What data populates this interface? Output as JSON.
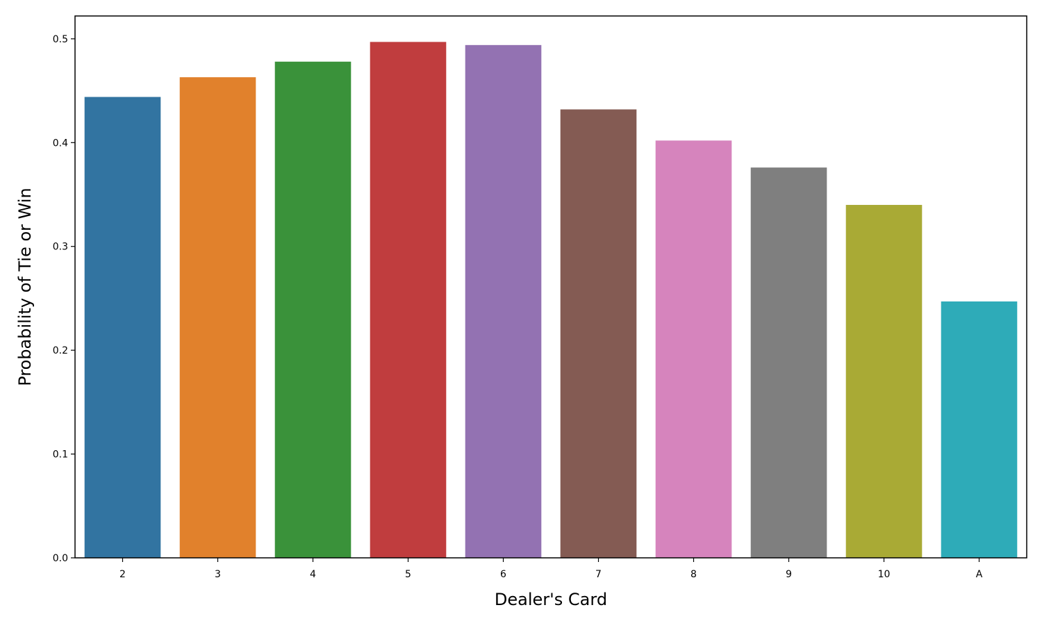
{
  "chart_data": {
    "type": "bar",
    "title": "",
    "xlabel": "Dealer's Card",
    "ylabel": "Probability of Tie or Win",
    "categories": [
      "2",
      "3",
      "4",
      "5",
      "6",
      "7",
      "8",
      "9",
      "10",
      "A"
    ],
    "values": [
      0.444,
      0.463,
      0.478,
      0.497,
      0.494,
      0.432,
      0.402,
      0.376,
      0.34,
      0.247
    ],
    "colors": [
      "#3274a1",
      "#e1812c",
      "#3a923a",
      "#c03d3e",
      "#9372b2",
      "#845b53",
      "#d684bd",
      "#7f7f7f",
      "#a9aa35",
      "#2eabb8"
    ],
    "ylim": [
      0,
      0.522
    ],
    "yticks": [
      0.0,
      0.1,
      0.2,
      0.3,
      0.4,
      0.5
    ],
    "ytick_labels": [
      "0.0",
      "0.1",
      "0.2",
      "0.3",
      "0.4",
      "0.5"
    ],
    "grid": false,
    "legend": "none"
  }
}
